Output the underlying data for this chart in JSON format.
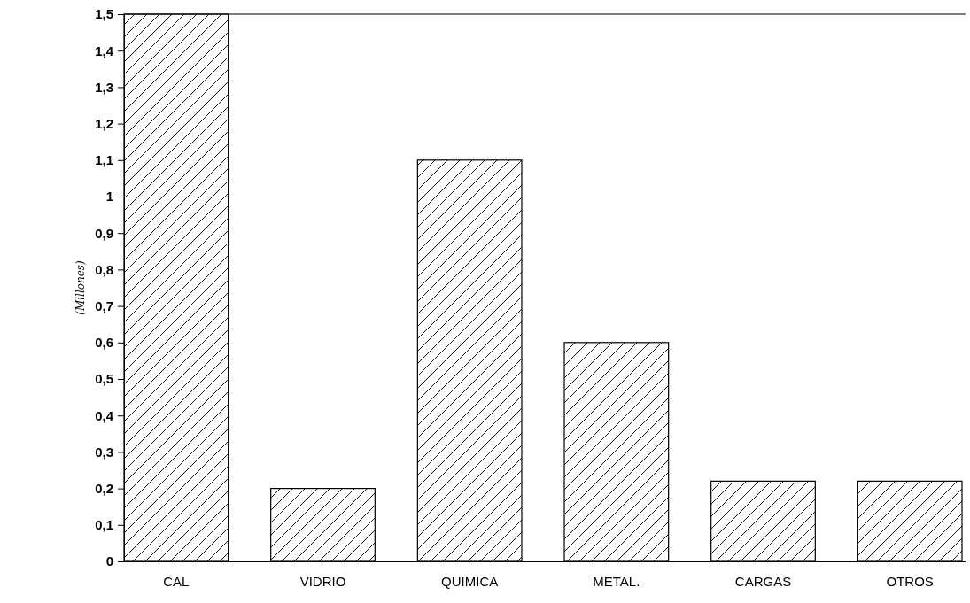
{
  "chart_data": {
    "type": "bar",
    "ylabel": "(Millones)",
    "categories": [
      "CAL",
      "VIDRIO",
      "QUIMICA",
      "METAL.",
      "CARGAS",
      "OTROS"
    ],
    "values": [
      1.5,
      0.2,
      1.1,
      0.6,
      0.22,
      0.22
    ],
    "color": "#000000",
    "ylim": [
      0,
      1.5
    ],
    "yticks": [
      {
        "value": 0,
        "label": "0"
      },
      {
        "value": 0.1,
        "label": "0,1"
      },
      {
        "value": 0.2,
        "label": "0,2"
      },
      {
        "value": 0.3,
        "label": "0,3"
      },
      {
        "value": 0.4,
        "label": "0,4"
      },
      {
        "value": 0.5,
        "label": "0,5"
      },
      {
        "value": 0.6,
        "label": "0,6"
      },
      {
        "value": 0.7,
        "label": "0,7"
      },
      {
        "value": 0.8,
        "label": "0,8"
      },
      {
        "value": 0.9,
        "label": "0,9"
      },
      {
        "value": 1,
        "label": "1"
      },
      {
        "value": 1.1,
        "label": "1,1"
      },
      {
        "value": 1.2,
        "label": "1,2"
      },
      {
        "value": 1.3,
        "label": "1,3"
      },
      {
        "value": 1.4,
        "label": "1,4"
      },
      {
        "value": 1.5,
        "label": "1,5"
      }
    ],
    "grid": false
  }
}
